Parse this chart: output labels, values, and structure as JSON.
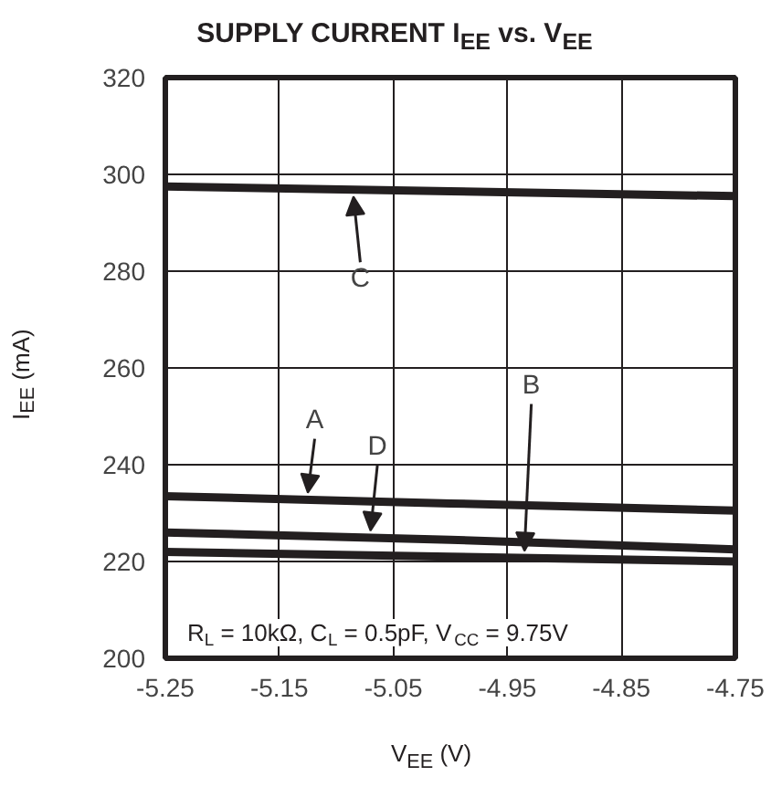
{
  "chart_data": {
    "type": "line",
    "title": "SUPPLY CURRENT I$_{EE}$ vs. V$_{EE}$",
    "xlabel": "V$_{EE}$ (V)",
    "ylabel": "I$_{EE}$ (mA)",
    "x": [
      -5.25,
      -5.0,
      -4.75
    ],
    "series": [
      {
        "name": "A",
        "color": "#231f20",
        "values": [
          233.5,
          232,
          230.5
        ]
      },
      {
        "name": "B",
        "color": "#231f20",
        "values": [
          222,
          221,
          220
        ]
      },
      {
        "name": "C",
        "color": "#231f20",
        "values": [
          297.5,
          296.5,
          295.5
        ]
      },
      {
        "name": "D",
        "color": "#231f20",
        "values": [
          226,
          224.5,
          222.5
        ]
      }
    ],
    "xlim": [
      -5.25,
      -4.75
    ],
    "ylim": [
      200,
      320
    ],
    "xticks": [
      -5.25,
      -5.15,
      -5.05,
      -4.95,
      -4.85,
      -4.75
    ],
    "yticks": [
      200,
      220,
      240,
      260,
      280,
      300,
      320
    ],
    "grid": true,
    "legend": false,
    "marker": "none",
    "line_style": "solid",
    "annotations": [
      "R$_{L}$ = 10kΩ, C$_{L}$ = 0.5pF, V$_{CC}$ = 9.75V"
    ]
  }
}
